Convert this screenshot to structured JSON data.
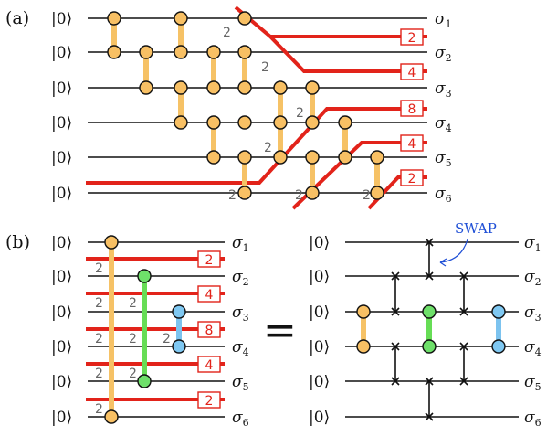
{
  "panels": {
    "a": "(a)",
    "b": "(b)"
  },
  "ket": "|0⟩",
  "sigma": [
    "σ",
    "σ",
    "σ",
    "σ",
    "σ",
    "σ"
  ],
  "sigma_sub": [
    "1",
    "2",
    "3",
    "4",
    "5",
    "6"
  ],
  "two": "2",
  "boxes_a": [
    "2",
    "4",
    "8",
    "4",
    "2"
  ],
  "boxes_b": [
    "2",
    "4",
    "8",
    "4",
    "2"
  ],
  "equals": "=",
  "swap_label": "SWAP",
  "colors": {
    "red": "#e2231a",
    "orange": "#f8c064",
    "green": "#6ee06a",
    "blue": "#7fc8f2",
    "swap_blue": "#1f4fd6"
  }
}
